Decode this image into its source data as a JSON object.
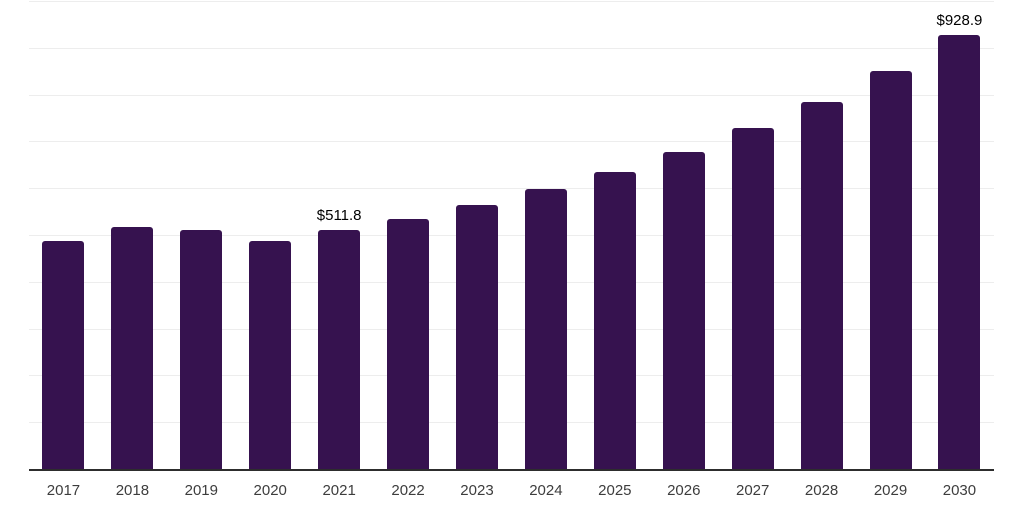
{
  "chart_data": {
    "type": "bar",
    "title": "",
    "xlabel": "",
    "ylabel": "",
    "categories": [
      "2017",
      "2018",
      "2019",
      "2020",
      "2021",
      "2022",
      "2023",
      "2024",
      "2025",
      "2026",
      "2027",
      "2028",
      "2029",
      "2030"
    ],
    "values": [
      489.3,
      518.4,
      513.5,
      490.1,
      511.8,
      537.2,
      567.1,
      600.4,
      635.8,
      680.5,
      731.6,
      786.4,
      853.0,
      928.9
    ],
    "data_labels": [
      "",
      "",
      "",
      "",
      "$511.8",
      "",
      "",
      "",
      "",
      "",
      "",
      "",
      "",
      "$928.9"
    ],
    "ylim": [
      0,
      1000
    ],
    "grid_step": 100,
    "grid": "horizontal-only",
    "legend_position": "none",
    "colors": {
      "bar": "#36124F",
      "gridline": "#ededed",
      "axis_line": "#2d2d2d",
      "value_label": "#000000",
      "tick_label": "#3d3d3d",
      "background": "#ffffff"
    }
  }
}
